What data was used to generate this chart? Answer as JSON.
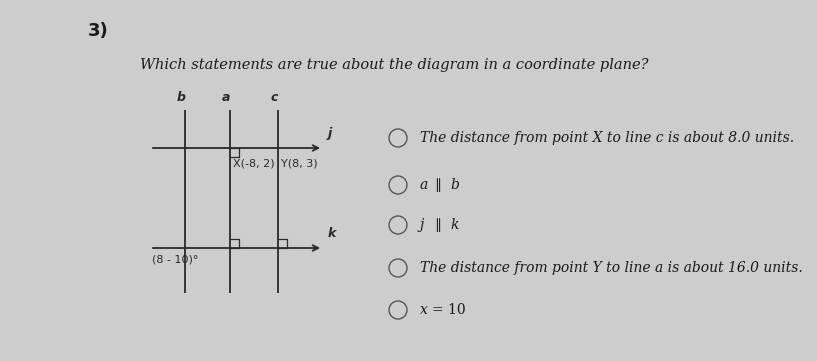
{
  "title_number": "3)",
  "question": "Which statements are true about the diagram in a coordinate plane?",
  "bg_color": "#cdcdcd",
  "diagram": {
    "point_X_label": "X(-8, 2)",
    "point_Y_label": "Y(8, 3)",
    "angle_label": "(8 - 10)°",
    "vertical_line_labels": [
      "b",
      "a",
      "c"
    ],
    "horizontal_line_labels": [
      "j",
      "k"
    ]
  },
  "options": [
    "The distance from point X to line c is about 8.0 units.",
    "a ∥ b",
    "j ∥ k",
    "The distance from point Y to line a is about 16.0 units.",
    "x = 10"
  ],
  "text_color": "#1a1a1a",
  "circle_color": "#555555",
  "font_size_question": 10.5,
  "font_size_options": 10,
  "font_size_number": 13,
  "font_size_diagram": 8,
  "font_size_diagram_label": 9
}
